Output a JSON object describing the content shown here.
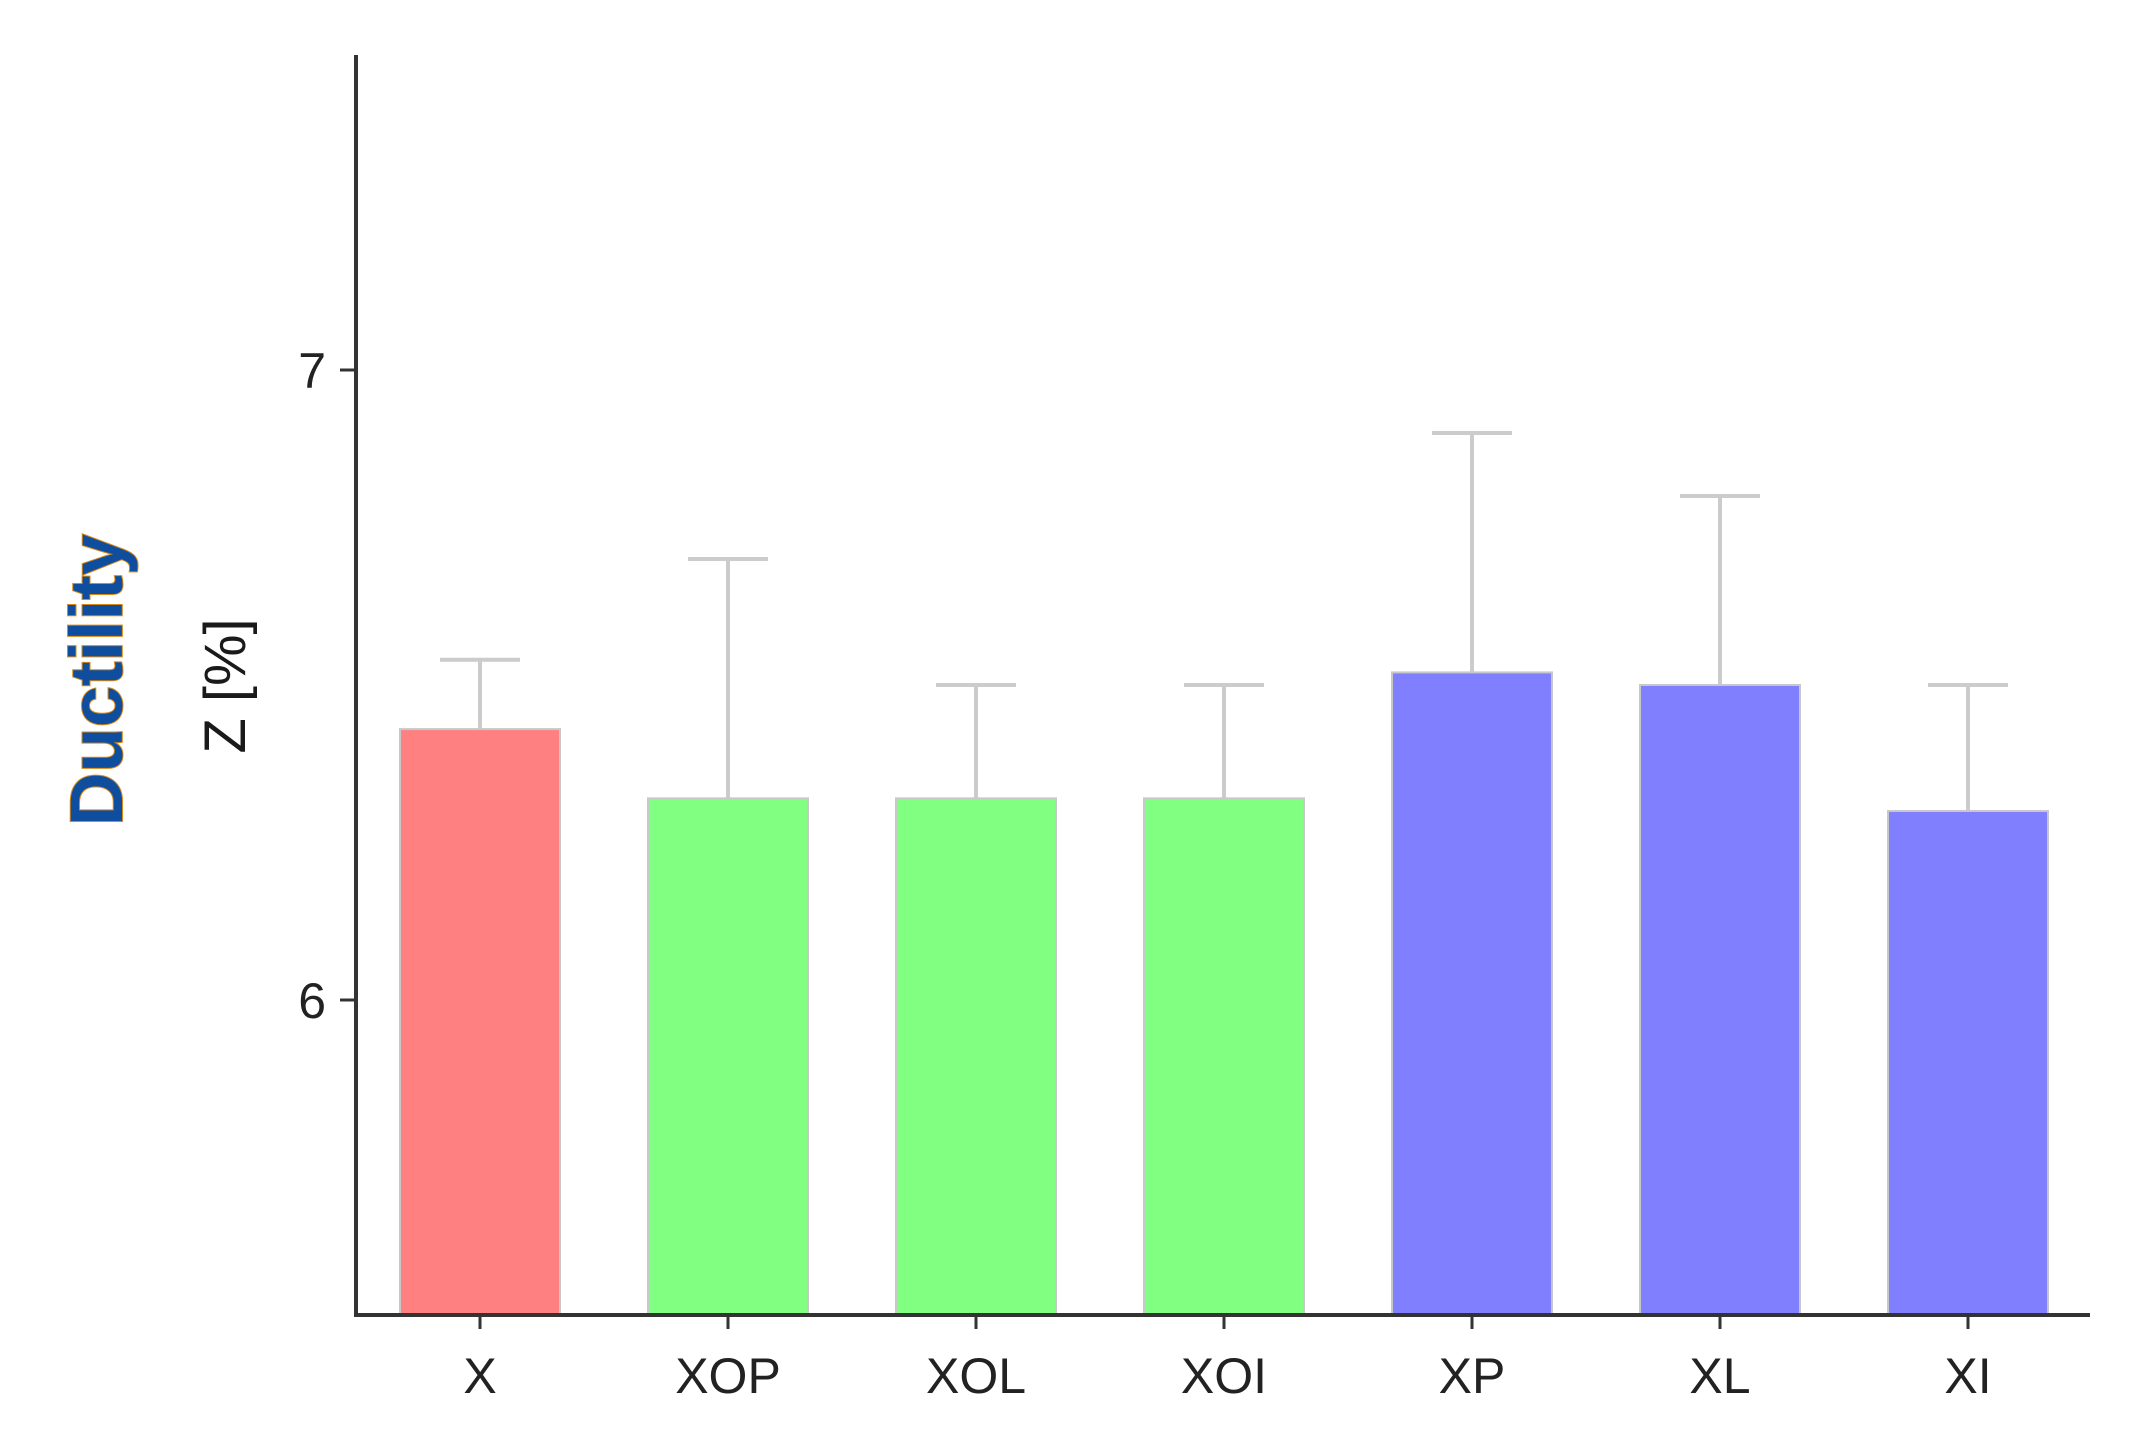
{
  "chart_data": {
    "type": "bar",
    "title": "Ductility",
    "ylabel": "Z [%]",
    "xlabel": "",
    "categories": [
      "X",
      "XOP",
      "XOL",
      "XOI",
      "XP",
      "XL",
      "XI"
    ],
    "values": [
      6.43,
      6.32,
      6.32,
      6.32,
      6.52,
      6.5,
      6.3
    ],
    "error_upper": [
      6.54,
      6.7,
      6.5,
      6.5,
      6.9,
      6.8,
      6.5
    ],
    "bar_colors": [
      "#ff8080",
      "#80ff80",
      "#80ff80",
      "#80ff80",
      "#8080ff",
      "#8080ff",
      "#8080ff"
    ],
    "error_bar_color": "#cccccc",
    "ylim": [
      5.5,
      7.5
    ],
    "yticks": [
      6,
      7
    ],
    "ytick_labels": [
      "6",
      "7"
    ],
    "grid": false,
    "legend": "none"
  }
}
